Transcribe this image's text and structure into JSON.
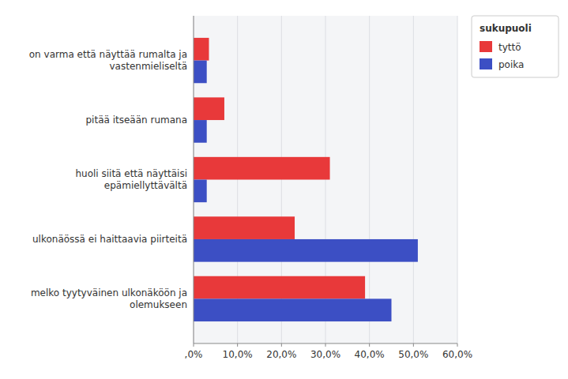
{
  "chart_data": {
    "type": "bar",
    "orientation": "horizontal",
    "categories": [
      "melko tyytyväinen ulkonäköön ja\nolemukseen",
      "ulkonäössä ei haittaavia piirteitä",
      "huoli siitä että näyttäisi\nepämiellyttävältä",
      "pitää itseään rumana",
      "on varma että näyttää rumalta ja\nvastenmieliseltä"
    ],
    "series": [
      {
        "name": "tyttö",
        "color": "#e8393a",
        "values": [
          39.0,
          23.0,
          31.0,
          7.0,
          3.5
        ]
      },
      {
        "name": "poika",
        "color": "#3c4fc4",
        "values": [
          45.0,
          51.0,
          3.0,
          3.0,
          3.0
        ]
      }
    ],
    "legend_title": "sukupuoli",
    "legend": "right",
    "grid": true,
    "xlim": [
      0,
      60
    ],
    "xticks": [
      {
        "value": 0,
        "label": ",0%"
      },
      {
        "value": 10,
        "label": "10,0%"
      },
      {
        "value": 20,
        "label": "20,0%"
      },
      {
        "value": 30,
        "label": "30,0%"
      },
      {
        "value": 40,
        "label": "40,0%"
      },
      {
        "value": 50,
        "label": "50,0%"
      },
      {
        "value": 60,
        "label": "60,0%"
      }
    ]
  }
}
